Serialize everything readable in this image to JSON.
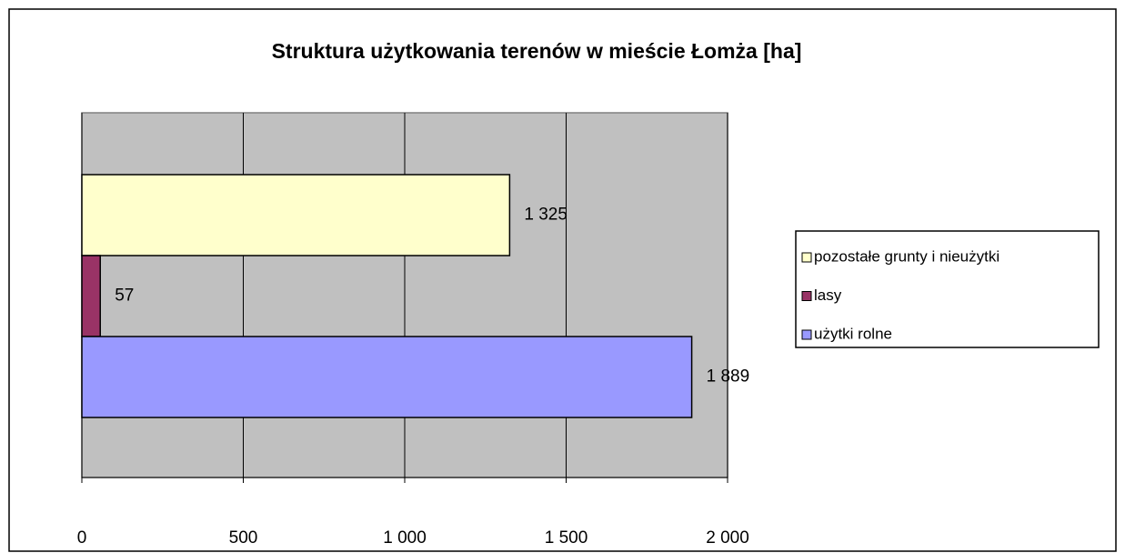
{
  "chart_data": {
    "type": "hbar",
    "title": "Struktura użytkowania terenów w mieście Łomża  [ha]",
    "categories": [
      null
    ],
    "series": [
      {
        "name": "pozostałe grunty i nieużytki",
        "color": "#ffffcc",
        "values": [
          1325
        ],
        "value_labels": [
          "1 325"
        ]
      },
      {
        "name": "lasy",
        "color": "#993366",
        "values": [
          57
        ]
      },
      {
        "name": "użytki rolne",
        "color": "#9999ff",
        "values": [
          1889
        ],
        "value_labels": [
          "1 889"
        ]
      }
    ],
    "xlim": [
      0,
      2000
    ],
    "xticks": [
      0,
      500,
      {
        "value": 1000,
        "label": "1 000"
      },
      {
        "value": 1500,
        "label": "1 500"
      },
      {
        "value": 2000,
        "label": "2 000"
      }
    ],
    "grid": true,
    "legend": "right",
    "plot_background": "#c0c0c0"
  }
}
